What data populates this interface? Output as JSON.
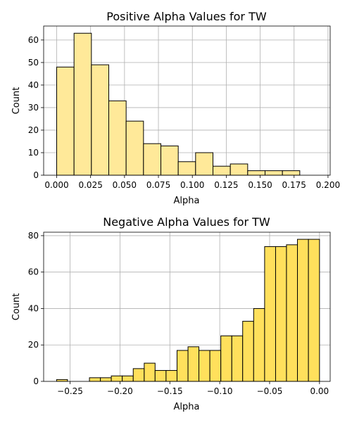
{
  "chart_data": [
    {
      "type": "bar",
      "title": "Positive Alpha Values for TW",
      "xlabel": "Alpha",
      "ylabel": "Count",
      "bar_color": "#ffe999",
      "grid": true,
      "xlim": [
        -0.0096,
        0.2016
      ],
      "ylim": [
        0,
        66.2
      ],
      "xticks": [
        0.0,
        0.025,
        0.05,
        0.075,
        0.1,
        0.125,
        0.15,
        0.175,
        0.2
      ],
      "xtick_labels": [
        "0.000",
        "0.025",
        "0.050",
        "0.075",
        "0.100",
        "0.125",
        "0.150",
        "0.175",
        "0.200"
      ],
      "yticks": [
        0,
        10,
        20,
        30,
        40,
        50,
        60
      ],
      "ytick_labels": [
        "0",
        "10",
        "20",
        "30",
        "40",
        "50",
        "60"
      ],
      "bins": [
        {
          "x0": 0.0,
          "x1": 0.0128,
          "count": 48
        },
        {
          "x0": 0.0128,
          "x1": 0.0256,
          "count": 63
        },
        {
          "x0": 0.0256,
          "x1": 0.0384,
          "count": 49
        },
        {
          "x0": 0.0384,
          "x1": 0.0512,
          "count": 33
        },
        {
          "x0": 0.0512,
          "x1": 0.064,
          "count": 24
        },
        {
          "x0": 0.064,
          "x1": 0.0768,
          "count": 14
        },
        {
          "x0": 0.0768,
          "x1": 0.0896,
          "count": 13
        },
        {
          "x0": 0.0896,
          "x1": 0.1024,
          "count": 6
        },
        {
          "x0": 0.1024,
          "x1": 0.1152,
          "count": 10
        },
        {
          "x0": 0.1152,
          "x1": 0.128,
          "count": 4
        },
        {
          "x0": 0.128,
          "x1": 0.1408,
          "count": 5
        },
        {
          "x0": 0.1408,
          "x1": 0.1536,
          "count": 2
        },
        {
          "x0": 0.1536,
          "x1": 0.1664,
          "count": 2
        },
        {
          "x0": 0.1664,
          "x1": 0.1792,
          "count": 2
        }
      ]
    },
    {
      "type": "bar",
      "title": "Negative Alpha Values for TW",
      "xlabel": "Alpha",
      "ylabel": "Count",
      "bar_color": "#ffe05c",
      "grid": true,
      "xlim": [
        -0.2765,
        0.0107
      ],
      "ylim": [
        0,
        81.9
      ],
      "xticks": [
        -0.25,
        -0.2,
        -0.15,
        -0.1,
        -0.05,
        0.0
      ],
      "xtick_labels": [
        "−0.25",
        "−0.20",
        "−0.15",
        "−0.10",
        "−0.05",
        "0.00"
      ],
      "yticks": [
        0,
        20,
        40,
        60,
        80
      ],
      "ytick_labels": [
        "0",
        "20",
        "40",
        "60",
        "80"
      ],
      "bins": [
        {
          "x0": -0.2635,
          "x1": -0.2526,
          "count": 1
        },
        {
          "x0": -0.2526,
          "x1": -0.2416,
          "count": 0
        },
        {
          "x0": -0.2416,
          "x1": -0.2306,
          "count": 0
        },
        {
          "x0": -0.2306,
          "x1": -0.2196,
          "count": 2
        },
        {
          "x0": -0.2196,
          "x1": -0.2087,
          "count": 2
        },
        {
          "x0": -0.2087,
          "x1": -0.1977,
          "count": 3
        },
        {
          "x0": -0.1977,
          "x1": -0.1867,
          "count": 3
        },
        {
          "x0": -0.1867,
          "x1": -0.1757,
          "count": 7
        },
        {
          "x0": -0.1757,
          "x1": -0.1648,
          "count": 10
        },
        {
          "x0": -0.1648,
          "x1": -0.1538,
          "count": 6
        },
        {
          "x0": -0.1538,
          "x1": -0.1428,
          "count": 6
        },
        {
          "x0": -0.1428,
          "x1": -0.1318,
          "count": 17
        },
        {
          "x0": -0.1318,
          "x1": -0.1209,
          "count": 19
        },
        {
          "x0": -0.1209,
          "x1": -0.1099,
          "count": 17
        },
        {
          "x0": -0.1099,
          "x1": -0.0989,
          "count": 17
        },
        {
          "x0": -0.0989,
          "x1": -0.0879,
          "count": 25
        },
        {
          "x0": -0.0879,
          "x1": -0.077,
          "count": 25
        },
        {
          "x0": -0.077,
          "x1": -0.066,
          "count": 33
        },
        {
          "x0": -0.066,
          "x1": -0.055,
          "count": 40
        },
        {
          "x0": -0.055,
          "x1": -0.044,
          "count": 74
        },
        {
          "x0": -0.044,
          "x1": -0.0331,
          "count": 74
        },
        {
          "x0": -0.0331,
          "x1": -0.0221,
          "count": 75
        },
        {
          "x0": -0.0221,
          "x1": -0.0111,
          "count": 78
        },
        {
          "x0": -0.0111,
          "x1": 0.0,
          "count": 78
        }
      ]
    }
  ]
}
